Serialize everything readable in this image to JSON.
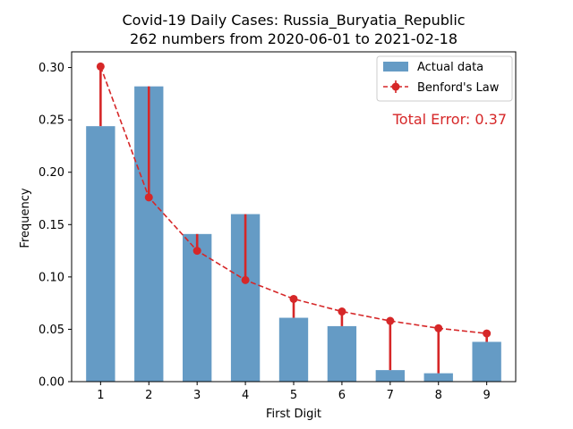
{
  "chart_data": {
    "type": "bar",
    "title": "Covid-19 Daily Cases: Russia_Buryatia_Republic",
    "subtitle": "262 numbers from 2020-06-01 to 2021-02-18",
    "xlabel": "First Digit",
    "ylabel": "Frequency",
    "categories": [
      "1",
      "2",
      "3",
      "4",
      "5",
      "6",
      "7",
      "8",
      "9"
    ],
    "ylim": [
      0,
      0.3
    ],
    "yticks": [
      "0.00",
      "0.05",
      "0.10",
      "0.15",
      "0.20",
      "0.25",
      "0.30"
    ],
    "series": [
      {
        "name": "Actual data",
        "type": "bar",
        "color": "#3a7fb5",
        "values": [
          0.244,
          0.282,
          0.141,
          0.16,
          0.061,
          0.053,
          0.011,
          0.008,
          0.038
        ]
      },
      {
        "name": "Benford's Law",
        "type": "line",
        "color": "#d62728",
        "values": [
          0.301,
          0.176,
          0.125,
          0.097,
          0.079,
          0.067,
          0.058,
          0.051,
          0.046
        ]
      }
    ],
    "annotation": "Total Error: 0.37",
    "legend_position": "top-right",
    "grid": false
  }
}
